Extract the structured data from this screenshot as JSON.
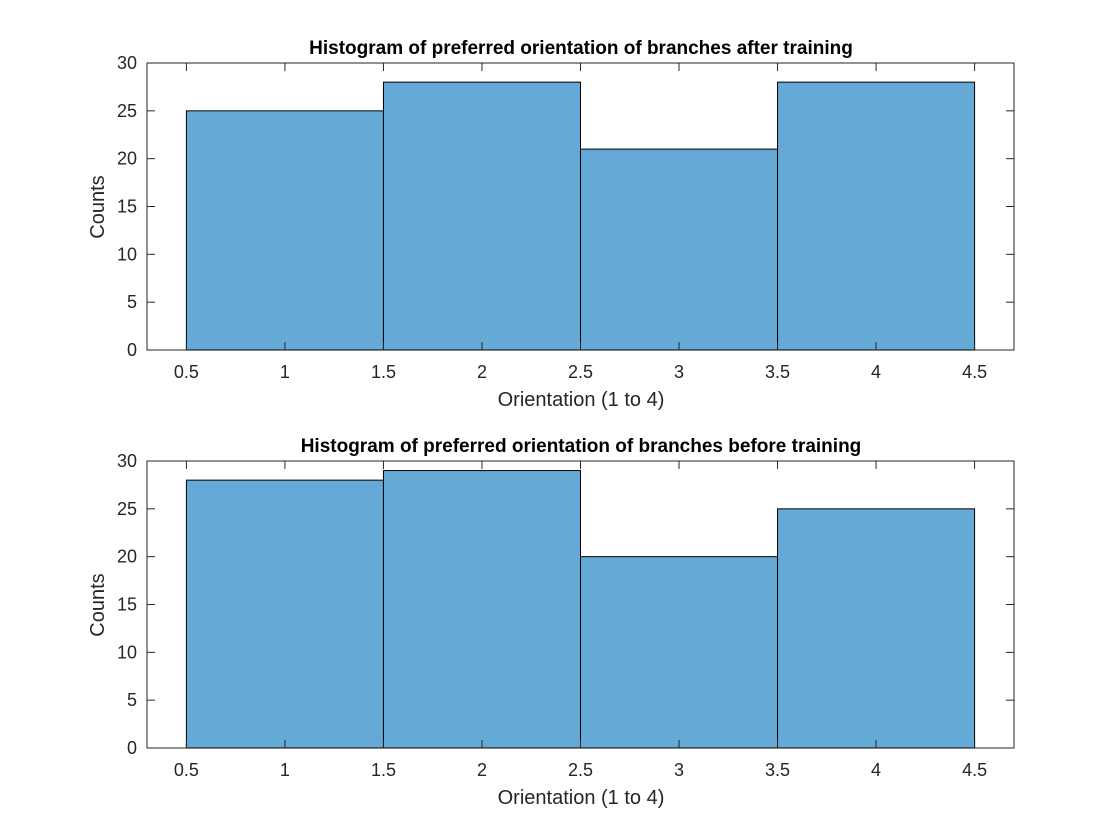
{
  "chart_data": [
    {
      "type": "histogram",
      "title": "Histogram of preferred orientation of branches after training",
      "xlabel": "Orientation (1 to 4)",
      "ylabel": "Counts",
      "xlim": [
        0.3,
        4.7
      ],
      "ylim": [
        0,
        30
      ],
      "xticks": [
        "0.5",
        "1",
        "1.5",
        "2",
        "2.5",
        "3",
        "3.5",
        "4",
        "4.5"
      ],
      "yticks": [
        "0",
        "5",
        "10",
        "15",
        "20",
        "25",
        "30"
      ],
      "bin_edges": [
        0.5,
        1.5,
        2.5,
        3.5,
        4.5
      ],
      "values": [
        25,
        28,
        21,
        28
      ],
      "bar_color": "#65a9d7",
      "grid": false,
      "legend": false
    },
    {
      "type": "histogram",
      "title": "Histogram of preferred orientation of branches before training",
      "xlabel": "Orientation (1 to 4)",
      "ylabel": "Counts",
      "xlim": [
        0.3,
        4.7
      ],
      "ylim": [
        0,
        30
      ],
      "xticks": [
        "0.5",
        "1",
        "1.5",
        "2",
        "2.5",
        "3",
        "3.5",
        "4",
        "4.5"
      ],
      "yticks": [
        "0",
        "5",
        "10",
        "15",
        "20",
        "25",
        "30"
      ],
      "bin_edges": [
        0.5,
        1.5,
        2.5,
        3.5,
        4.5
      ],
      "values": [
        28,
        29,
        20,
        25
      ],
      "bar_color": "#65a9d7",
      "grid": false,
      "legend": false
    }
  ]
}
